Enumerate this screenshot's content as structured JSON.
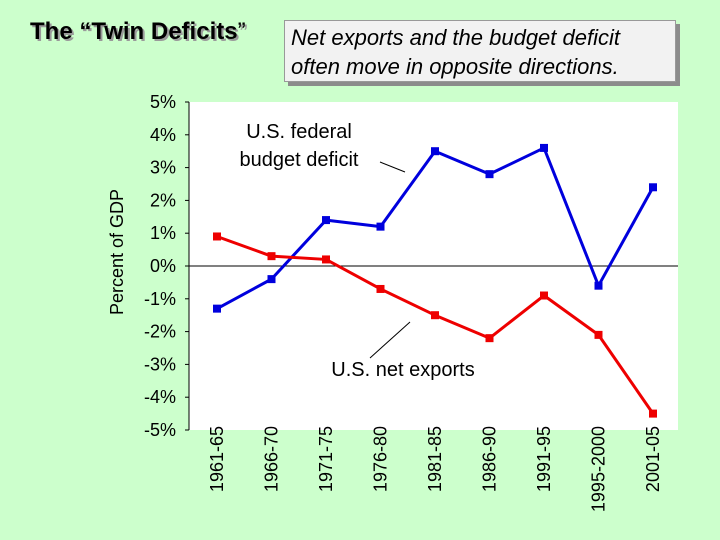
{
  "slide": {
    "title": "The “Twin Deficits",
    "title_close_quote": "”",
    "subtitle_line1": "Net exports and the budget deficit",
    "subtitle_line2": "often move in opposite directions."
  },
  "chart_data": {
    "type": "line",
    "categories": [
      "1961-65",
      "1966-70",
      "1971-75",
      "1976-80",
      "1981-85",
      "1986-90",
      "1991-95",
      "1995-2000",
      "2001-05"
    ],
    "series": [
      {
        "name": "U.S. federal budget deficit",
        "color": "#0000dd",
        "values": [
          -1.3,
          -0.4,
          1.4,
          1.2,
          3.5,
          2.8,
          3.6,
          -0.6,
          2.4
        ]
      },
      {
        "name": "U.S. net exports",
        "color": "#ee0000",
        "values": [
          0.9,
          0.3,
          0.2,
          -0.7,
          -1.5,
          -2.2,
          -0.9,
          -2.1,
          -4.5
        ]
      }
    ],
    "ylabel": "Percent of GDP",
    "xlabel": "",
    "ylim": [
      -5,
      5
    ],
    "yticks": [
      5,
      4,
      3,
      2,
      1,
      0,
      -1,
      -2,
      -3,
      -4,
      -5
    ],
    "ytick_labels": [
      "5%",
      "4%",
      "3%",
      "2%",
      "1%",
      "0%",
      "-1%",
      "-2%",
      "-3%",
      "-4%",
      "-5%"
    ],
    "annotations": [
      {
        "series": "U.S. federal budget deficit",
        "lines": [
          "U.S. federal",
          "budget deficit"
        ]
      },
      {
        "series": "U.S. net exports",
        "lines": [
          "U.S. net exports"
        ]
      }
    ]
  }
}
